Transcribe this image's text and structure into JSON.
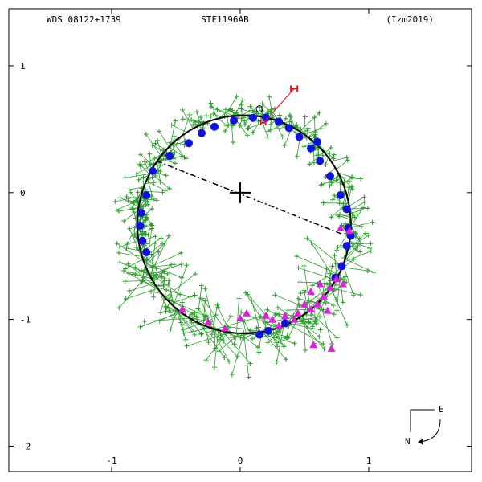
{
  "header": {
    "left": "WDS 08122+1739",
    "center": "STF1196AB",
    "right": "(Izm2019)"
  },
  "compass": {
    "east": "E",
    "north": "N"
  },
  "colors": {
    "orbit": "#000000",
    "observations": "#2a9d2a",
    "speckle": "#1010e0",
    "other": "#e020e0",
    "first_obs": "#e01010"
  },
  "chart_data": {
    "type": "scatter",
    "title": "",
    "xlabel": "",
    "ylabel": "",
    "xlim": [
      -1.8,
      1.8
    ],
    "ylim": [
      -2.2,
      1.45
    ],
    "x_ticks": [
      -1,
      0,
      1
    ],
    "y_ticks": [
      1,
      0,
      -1,
      -2
    ],
    "x_tick_labels": [
      "-1",
      "0",
      "1"
    ],
    "y_tick_labels": [
      "1",
      "0",
      "-1",
      "-2"
    ],
    "grid": false,
    "orbit": {
      "center": [
        0.03,
        -0.25
      ],
      "rx": 0.83,
      "ry": 0.86,
      "rotation_deg": 0
    },
    "primary": [
      0,
      0
    ],
    "line_of_nodes": {
      "from": [
        -0.65,
        0.25
      ],
      "to": [
        0.8,
        -0.33
      ]
    },
    "first_observation": {
      "x": 0.42,
      "y": 0.82
    },
    "reference_circle": {
      "x": 0.15,
      "y": 0.66
    },
    "speckle_points": [
      [
        -0.4,
        0.39
      ],
      [
        -0.55,
        0.29
      ],
      [
        -0.68,
        0.17
      ],
      [
        -0.73,
        -0.02
      ],
      [
        -0.77,
        -0.16
      ],
      [
        -0.78,
        -0.26
      ],
      [
        -0.76,
        -0.38
      ],
      [
        -0.73,
        -0.47
      ],
      [
        -0.05,
        0.57
      ],
      [
        0.1,
        0.59
      ],
      [
        0.2,
        0.59
      ],
      [
        0.3,
        0.56
      ],
      [
        0.38,
        0.51
      ],
      [
        0.46,
        0.44
      ],
      [
        0.55,
        0.35
      ],
      [
        0.62,
        0.25
      ],
      [
        0.7,
        0.13
      ],
      [
        0.78,
        -0.02
      ],
      [
        0.83,
        -0.13
      ],
      [
        0.84,
        -0.28
      ],
      [
        0.83,
        -0.42
      ],
      [
        0.79,
        -0.58
      ],
      [
        0.74,
        -0.67
      ],
      [
        0.35,
        -1.03
      ],
      [
        0.22,
        -1.09
      ],
      [
        0.15,
        -1.12
      ],
      [
        -0.2,
        0.52
      ],
      [
        -0.3,
        0.47
      ],
      [
        0.6,
        0.4
      ],
      [
        0.86,
        -0.34
      ]
    ],
    "other_points": [
      [
        0.78,
        -0.28
      ],
      [
        0.85,
        -0.3
      ],
      [
        0.75,
        -0.68
      ],
      [
        0.7,
        -0.75
      ],
      [
        0.65,
        -0.82
      ],
      [
        0.6,
        -0.88
      ],
      [
        0.55,
        -0.92
      ],
      [
        0.5,
        -0.88
      ],
      [
        0.45,
        -0.95
      ],
      [
        0.42,
        -1.0
      ],
      [
        0.35,
        -0.97
      ],
      [
        0.62,
        -0.72
      ],
      [
        0.55,
        -0.78
      ],
      [
        0.8,
        -0.72
      ],
      [
        0.57,
        -1.2
      ],
      [
        0.71,
        -1.23
      ],
      [
        0.68,
        -0.93
      ],
      [
        0.3,
        -1.05
      ],
      [
        0.25,
        -1.0
      ],
      [
        -0.45,
        -0.92
      ],
      [
        -0.25,
        -1.02
      ],
      [
        0.05,
        -0.95
      ],
      [
        0.0,
        -0.99
      ],
      [
        -0.12,
        -1.07
      ],
      [
        0.2,
        -0.97
      ]
    ]
  }
}
